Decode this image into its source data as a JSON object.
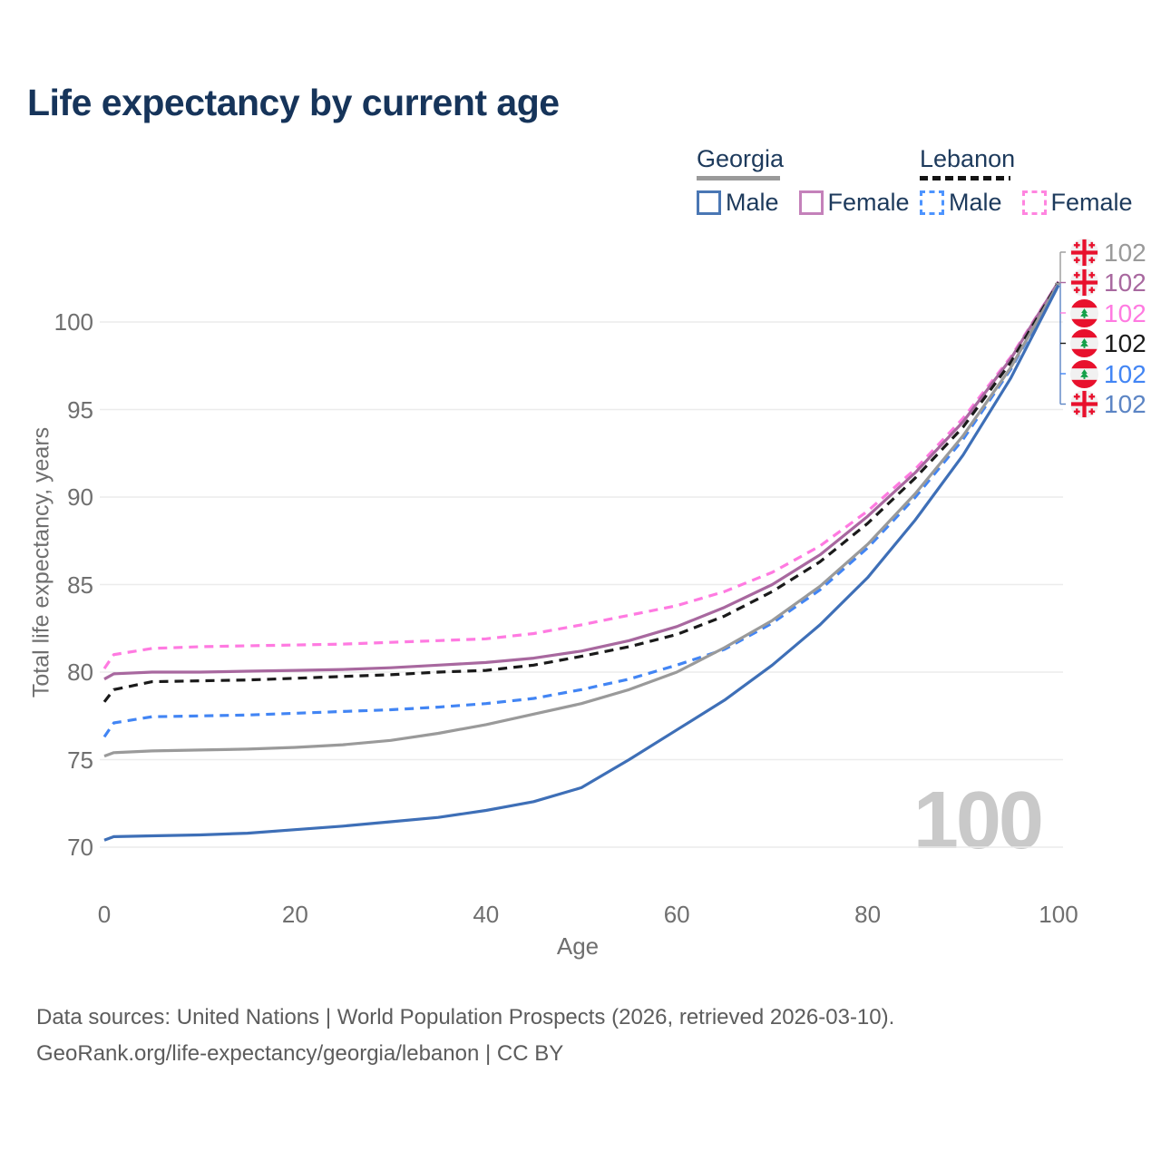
{
  "title": "Life expectancy by current age",
  "legend": {
    "groups": [
      {
        "name": "Georgia",
        "line_style": "solid",
        "underline_color": "#9a9a9a",
        "items": [
          {
            "label": "Male",
            "color": "#4a77b4",
            "dashed": false
          },
          {
            "label": "Female",
            "color": "#c481ba",
            "dashed": false
          }
        ]
      },
      {
        "name": "Lebanon",
        "line_style": "dashed",
        "underline_color": "#141414",
        "items": [
          {
            "label": "Male",
            "color": "#4d94ff",
            "dashed": true
          },
          {
            "label": "Female",
            "color": "#ff85e0",
            "dashed": true
          }
        ]
      }
    ]
  },
  "chart_data": {
    "type": "line",
    "title": "Life expectancy by current age",
    "xlabel": "Age",
    "ylabel": "Total life expectancy, years",
    "xlim": [
      0,
      100
    ],
    "ylim": [
      68.5,
      103
    ],
    "x_ticks": [
      0,
      20,
      40,
      60,
      80,
      100
    ],
    "y_ticks": [
      70,
      75,
      80,
      85,
      90,
      95,
      100
    ],
    "grid": "horizontal",
    "legend_position": "top-right",
    "ages": [
      0,
      1,
      5,
      10,
      15,
      20,
      25,
      30,
      35,
      40,
      45,
      50,
      55,
      60,
      65,
      70,
      75,
      80,
      85,
      90,
      95,
      100
    ],
    "series": [
      {
        "name": "Lebanon Female",
        "country": "lebanon",
        "sex": "female",
        "color": "#ff7ae1",
        "dash": "dashed",
        "values": [
          80.2,
          81.0,
          81.35,
          81.45,
          81.5,
          81.55,
          81.6,
          81.7,
          81.8,
          81.9,
          82.2,
          82.7,
          83.25,
          83.8,
          84.6,
          85.7,
          87.2,
          89.2,
          91.6,
          94.5,
          98.0,
          102.3
        ]
      },
      {
        "name": "Georgia Female",
        "country": "georgia",
        "sex": "female",
        "color": "#a8689f",
        "dash": "solid",
        "values": [
          79.6,
          79.9,
          80.0,
          80.0,
          80.05,
          80.1,
          80.15,
          80.25,
          80.4,
          80.55,
          80.8,
          81.2,
          81.8,
          82.6,
          83.7,
          85.0,
          86.7,
          88.9,
          91.4,
          94.3,
          97.9,
          102.3
        ]
      },
      {
        "name": "Lebanon Both sexes",
        "country": "lebanon",
        "sex": "both",
        "color": "#1a1a1a",
        "dash": "dashed",
        "values": [
          78.3,
          79.0,
          79.45,
          79.5,
          79.55,
          79.65,
          79.75,
          79.85,
          80.0,
          80.1,
          80.4,
          80.9,
          81.45,
          82.15,
          83.2,
          84.6,
          86.3,
          88.5,
          91.1,
          94.0,
          97.7,
          102.25
        ]
      },
      {
        "name": "Lebanon Male",
        "country": "lebanon",
        "sex": "male",
        "color": "#4285f4",
        "dash": "dashed",
        "values": [
          76.3,
          77.1,
          77.45,
          77.5,
          77.55,
          77.65,
          77.75,
          77.85,
          78.0,
          78.2,
          78.5,
          79.0,
          79.6,
          80.4,
          81.3,
          82.8,
          84.7,
          87.1,
          90.0,
          93.3,
          97.3,
          102.2
        ]
      },
      {
        "name": "Georgia Both sexes",
        "country": "georgia",
        "sex": "both",
        "color": "#9a9a9a",
        "dash": "solid",
        "values": [
          75.2,
          75.4,
          75.5,
          75.55,
          75.6,
          75.7,
          75.85,
          76.1,
          76.5,
          77.0,
          77.6,
          78.2,
          79.0,
          80.0,
          81.4,
          82.95,
          84.9,
          87.3,
          90.2,
          93.5,
          97.4,
          102.2
        ]
      },
      {
        "name": "Georgia Male",
        "country": "georgia",
        "sex": "male",
        "color": "#3e6fb7",
        "dash": "solid",
        "values": [
          70.4,
          70.6,
          70.65,
          70.7,
          70.8,
          71.0,
          71.2,
          71.45,
          71.7,
          72.1,
          72.6,
          73.4,
          75.0,
          76.7,
          78.4,
          80.4,
          82.7,
          85.4,
          88.7,
          92.4,
          96.8,
          102.1
        ]
      }
    ]
  },
  "end_labels": [
    {
      "flag": "georgia",
      "value": "102",
      "color": "#9a9a9a"
    },
    {
      "flag": "georgia",
      "value": "102",
      "color": "#a8689f"
    },
    {
      "flag": "lebanon",
      "value": "102",
      "color": "#ff7ae1"
    },
    {
      "flag": "lebanon",
      "value": "102",
      "color": "#1a1a1a"
    },
    {
      "flag": "lebanon",
      "value": "102",
      "color": "#4285f4"
    },
    {
      "flag": "georgia",
      "value": "102",
      "color": "#5b84c4"
    }
  ],
  "watermark": "100",
  "colors": {
    "title": "#16345a",
    "axis_text": "#6f6f6f",
    "gridline": "#ececec",
    "watermark": "#c9c9c9"
  },
  "footer": {
    "line1": "Data sources: United Nations | World Population Prospects (2026, retrieved 2026-03-10).",
    "line2": "GeoRank.org/life-expectancy/georgia/lebanon | CC BY"
  }
}
